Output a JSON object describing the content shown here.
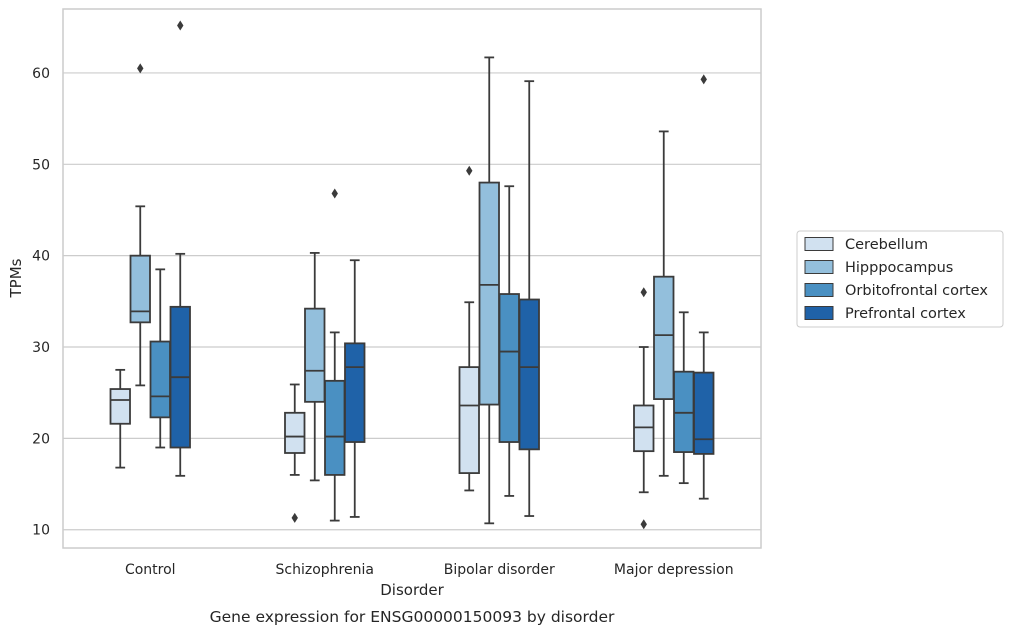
{
  "caption": "Gene expression for ENSG00000150093 by disorder",
  "chart_data": {
    "type": "box",
    "xlabel": "Disorder",
    "ylabel": "TPMs",
    "ylim": [
      8,
      67
    ],
    "yticks": [
      10,
      20,
      30,
      40,
      50,
      60
    ],
    "grid": "horizontal",
    "legend_position": "right",
    "categories": [
      "Control",
      "Schizophrenia",
      "Bipolar disorder",
      "Major depression"
    ],
    "series": [
      {
        "name": "Cerebellum",
        "color": "#d1e1f0",
        "boxes": [
          {
            "whislo": 16.8,
            "q1": 21.6,
            "med": 24.2,
            "q3": 25.4,
            "whishi": 27.5,
            "fliers": []
          },
          {
            "whislo": 16.0,
            "q1": 18.4,
            "med": 20.2,
            "q3": 22.8,
            "whishi": 25.9,
            "fliers": [
              11.3
            ]
          },
          {
            "whislo": 14.3,
            "q1": 16.2,
            "med": 23.6,
            "q3": 27.8,
            "whishi": 34.9,
            "fliers": [
              49.3
            ]
          },
          {
            "whislo": 14.1,
            "q1": 18.6,
            "med": 21.2,
            "q3": 23.6,
            "whishi": 30.0,
            "fliers": [
              10.6,
              36.0
            ]
          }
        ]
      },
      {
        "name": "Hipppocampus",
        "color": "#93bfdc",
        "boxes": [
          {
            "whislo": 25.8,
            "q1": 32.7,
            "med": 33.9,
            "q3": 40.0,
            "whishi": 45.4,
            "fliers": [
              60.5
            ]
          },
          {
            "whislo": 15.4,
            "q1": 24.0,
            "med": 27.4,
            "q3": 34.2,
            "whishi": 40.3,
            "fliers": []
          },
          {
            "whislo": 10.7,
            "q1": 23.7,
            "med": 36.8,
            "q3": 48.0,
            "whishi": 61.7,
            "fliers": []
          },
          {
            "whislo": 15.9,
            "q1": 24.3,
            "med": 31.3,
            "q3": 37.7,
            "whishi": 53.6,
            "fliers": []
          }
        ]
      },
      {
        "name": "Orbitofrontal cortex",
        "color": "#4a90c2",
        "boxes": [
          {
            "whislo": 19.0,
            "q1": 22.3,
            "med": 24.6,
            "q3": 30.6,
            "whishi": 38.5,
            "fliers": []
          },
          {
            "whislo": 11.0,
            "q1": 16.0,
            "med": 20.2,
            "q3": 26.3,
            "whishi": 31.6,
            "fliers": [
              46.8
            ]
          },
          {
            "whislo": 13.7,
            "q1": 19.6,
            "med": 29.5,
            "q3": 35.8,
            "whishi": 47.6,
            "fliers": []
          },
          {
            "whislo": 15.1,
            "q1": 18.5,
            "med": 22.8,
            "q3": 27.3,
            "whishi": 33.8,
            "fliers": []
          }
        ]
      },
      {
        "name": "Prefrontal cortex",
        "color": "#1f62a8",
        "boxes": [
          {
            "whislo": 15.9,
            "q1": 19.0,
            "med": 26.7,
            "q3": 34.4,
            "whishi": 40.2,
            "fliers": [
              65.2
            ]
          },
          {
            "whislo": 11.4,
            "q1": 19.6,
            "med": 27.8,
            "q3": 30.4,
            "whishi": 39.5,
            "fliers": []
          },
          {
            "whislo": 11.5,
            "q1": 18.8,
            "med": 27.8,
            "q3": 35.2,
            "whishi": 59.1,
            "fliers": []
          },
          {
            "whislo": 13.4,
            "q1": 18.3,
            "med": 19.9,
            "q3": 27.2,
            "whishi": 31.6,
            "fliers": [
              59.3
            ]
          }
        ]
      }
    ]
  }
}
